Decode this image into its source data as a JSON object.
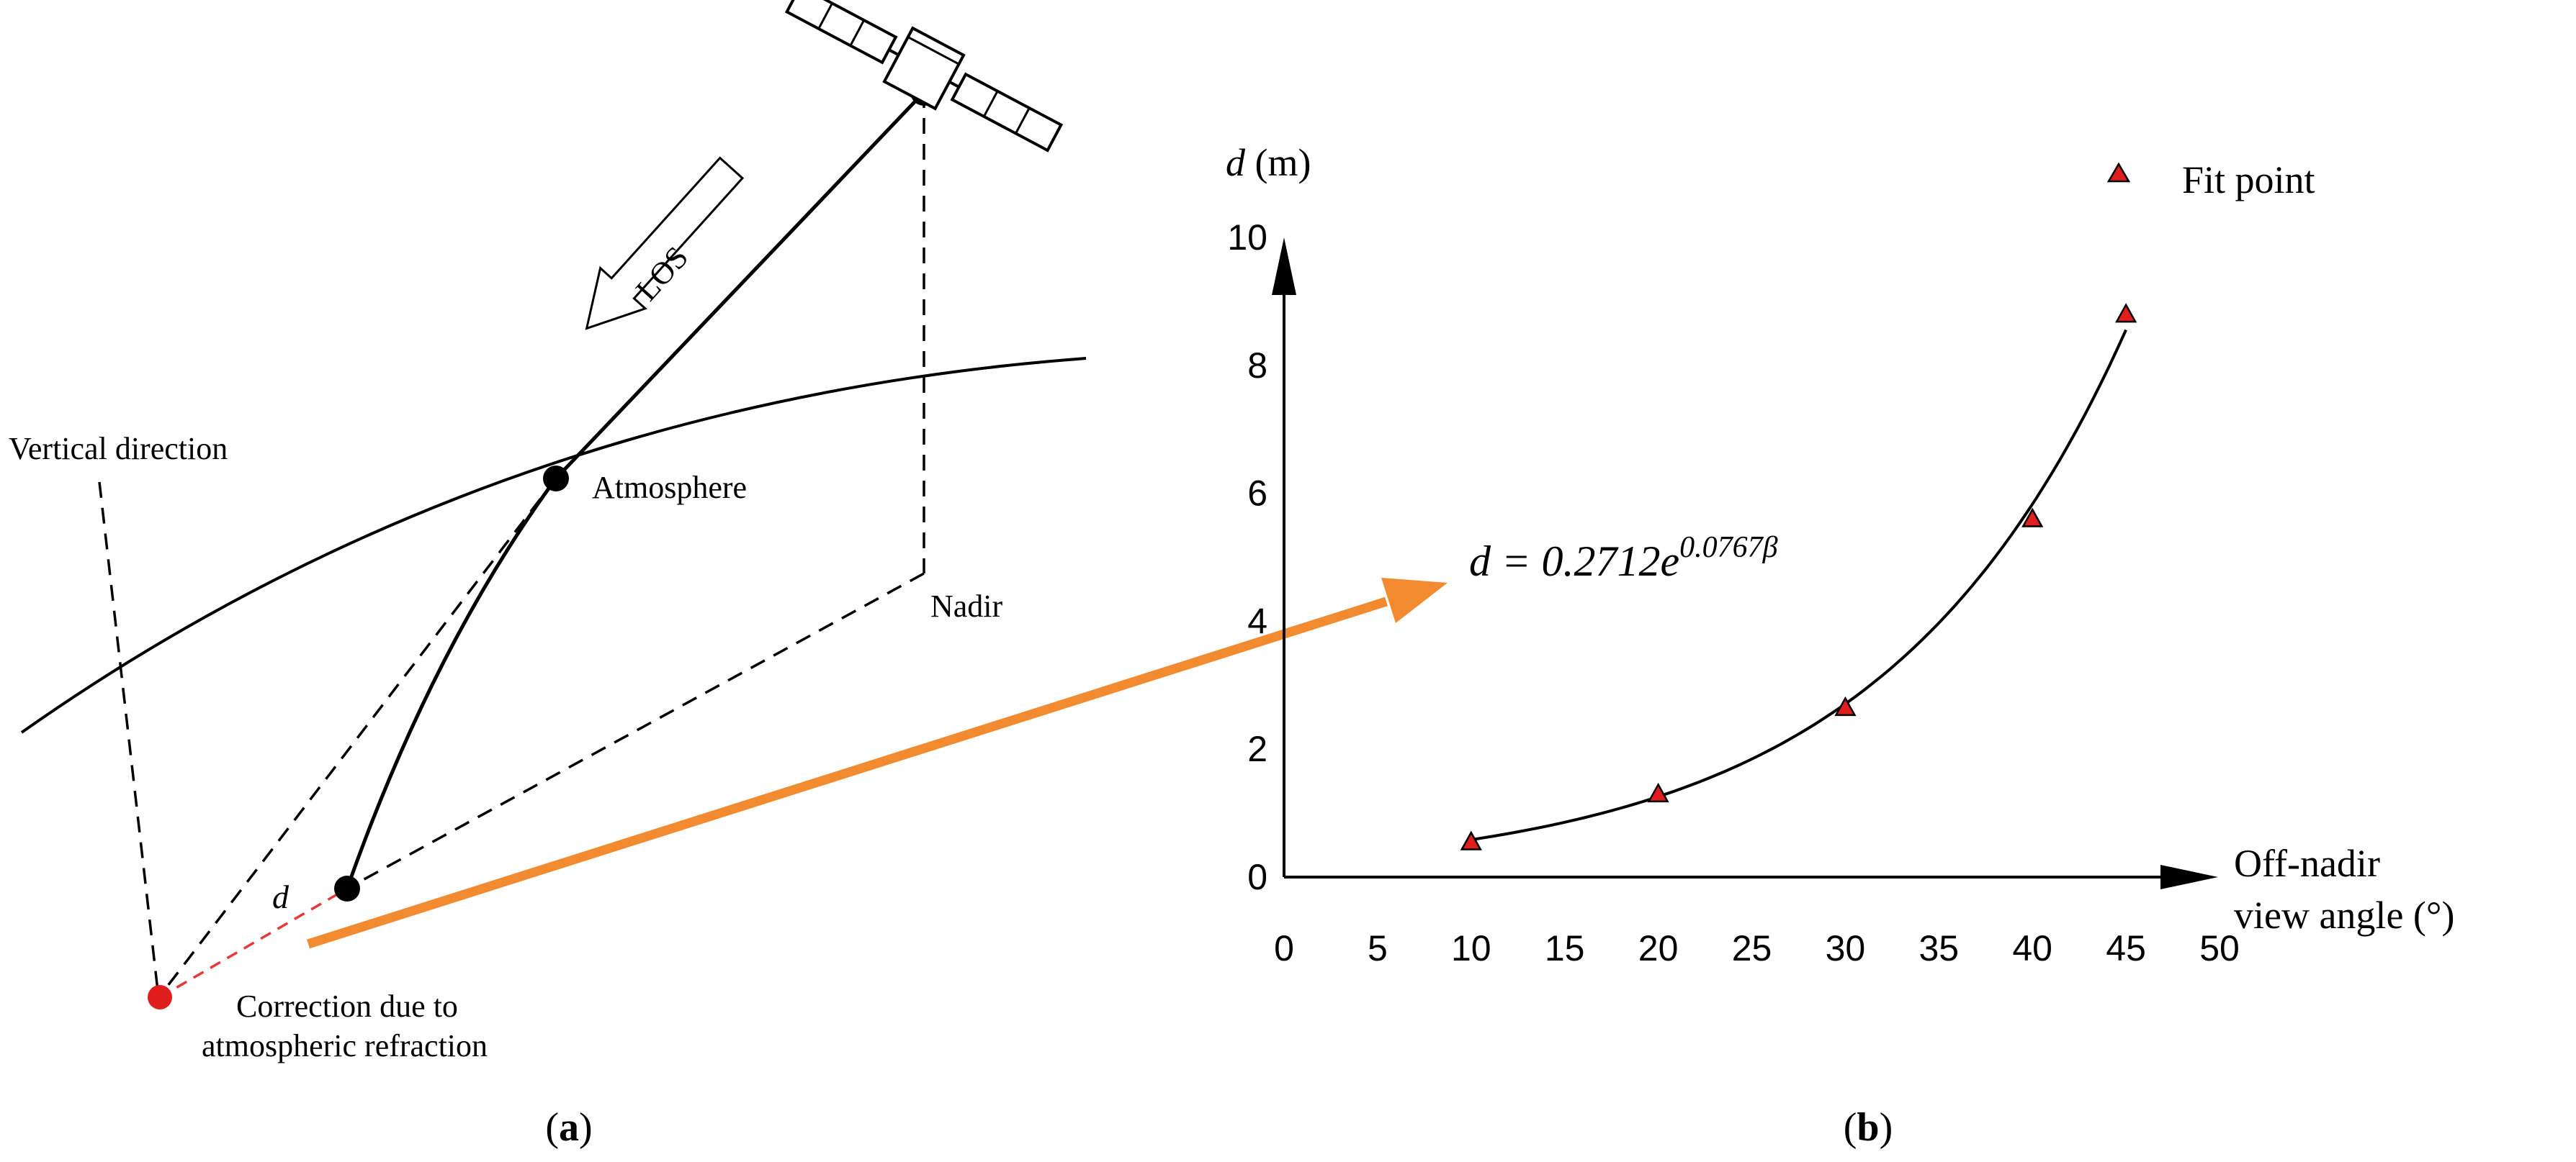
{
  "panel_a": {
    "label_vertical": "Vertical direction",
    "label_atmosphere": "Atmosphere",
    "label_nadir": "Nadir",
    "label_los": "LOS",
    "label_d": "d",
    "correction_line1": "Correction due to",
    "correction_line2": "atmospheric refraction",
    "caption_letter": "a",
    "caption_open": "(",
    "caption_close": ")"
  },
  "panel_b": {
    "caption_letter": "b",
    "caption_open": "(",
    "caption_close": ")",
    "equation": {
      "lhs": "d",
      "eq": " = 0.2712e",
      "exponent": "0.0767β"
    }
  },
  "colors": {
    "accent_orange": "#f28a30",
    "marker_red": "#e01e1e",
    "correction_red": "#e53a3a",
    "ink": "#000000"
  },
  "chart_data": {
    "type": "scatter",
    "y_label_var": "d",
    "y_label_unit": " (m)",
    "xlabel_line1": "Off-nadir",
    "xlabel_line2": "view angle (°)",
    "legend": "Fit point",
    "x_ticks": [
      "0",
      "5",
      "10",
      "15",
      "20",
      "25",
      "30",
      "35",
      "40",
      "45",
      "50"
    ],
    "y_ticks": [
      "0",
      "2",
      "4",
      "6",
      "8",
      "10"
    ],
    "xlim": [
      0,
      50
    ],
    "ylim": [
      0,
      10
    ],
    "series": [
      {
        "name": "Fit point",
        "marker": "triangle",
        "x": [
          10,
          20,
          30,
          40,
          45
        ],
        "y": [
          0.55,
          1.3,
          2.65,
          5.6,
          8.8
        ]
      }
    ],
    "fit": {
      "a": 0.2712,
      "b": 0.0767,
      "x_from": 10,
      "x_to": 45
    },
    "grid": false
  }
}
